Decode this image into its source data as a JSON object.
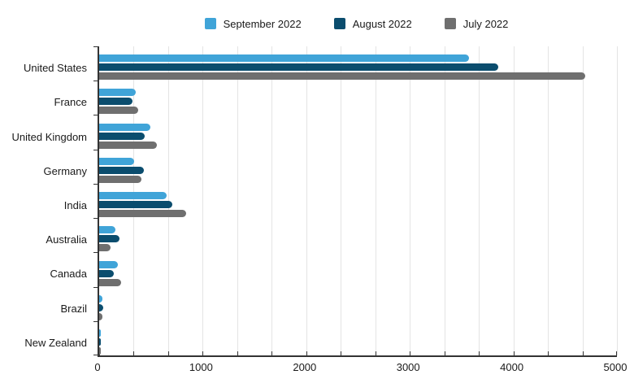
{
  "chart_data": {
    "type": "bar",
    "orientation": "horizontal",
    "title": "",
    "xlabel": "",
    "ylabel": "",
    "xlim": [
      0,
      5000
    ],
    "x_major_ticks": [
      0,
      1000,
      2000,
      3000,
      4000,
      5000
    ],
    "minor_divisions_per_major": 3,
    "grid": true,
    "legend_position": "top-center",
    "categories": [
      "United States",
      "France",
      "United Kingdom",
      "Germany",
      "India",
      "Australia",
      "Canada",
      "Brazil",
      "New Zealand"
    ],
    "series": [
      {
        "name": "September 2022",
        "color": "#40a4d8",
        "values": [
          3570,
          350,
          495,
          340,
          650,
          160,
          180,
          30,
          18
        ]
      },
      {
        "name": "August 2022",
        "color": "#0b4d6e",
        "values": [
          3855,
          320,
          440,
          430,
          710,
          200,
          145,
          40,
          12
        ]
      },
      {
        "name": "July 2022",
        "color": "#6f6f6f",
        "values": [
          4690,
          380,
          560,
          410,
          840,
          110,
          215,
          35,
          16
        ]
      }
    ],
    "colors": {
      "gridline": "#e4e4e4",
      "axis": "#333333",
      "text": "#1a1a1a",
      "background": "#ffffff"
    }
  }
}
